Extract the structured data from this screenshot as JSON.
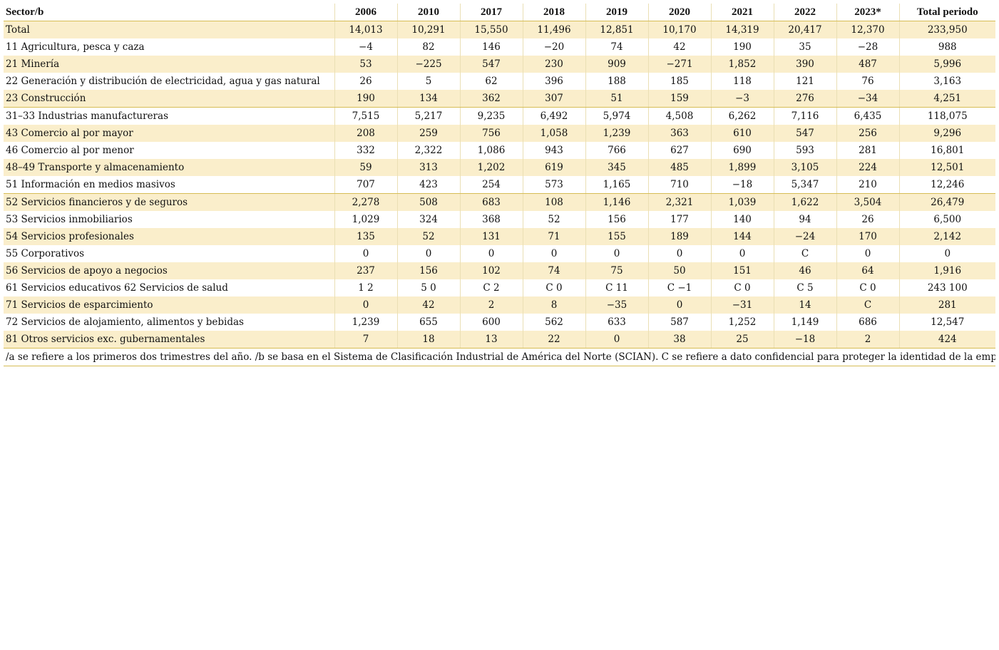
{
  "table": {
    "header": [
      "Sector/b",
      "2006",
      "2010",
      "2017",
      "2018",
      "2019",
      "2020",
      "2021",
      "2022",
      "2023*",
      "Total periodo"
    ],
    "rows": [
      [
        "Total",
        "14,013",
        "10,291",
        "15,550",
        "11,496",
        "12,851",
        "10,170",
        "14,319",
        "20,417",
        "12,370",
        "233,950"
      ],
      [
        "11 Agricultura, pesca y caza",
        "−4",
        "82",
        "146",
        "−20",
        "74",
        "42",
        "190",
        "35",
        "−28",
        "988"
      ],
      [
        "21 Minería",
        "53",
        "−225",
        "547",
        "230",
        "909",
        "−271",
        "1,852",
        "390",
        "487",
        "5,996"
      ],
      [
        "22 Generación y distribución de electricidad, agua y gas natural",
        "26",
        "5",
        "62",
        "396",
        "188",
        "185",
        "118",
        "121",
        "76",
        "3,163"
      ],
      [
        "23 Construcción",
        "190",
        "134",
        "362",
        "307",
        "51",
        "159",
        "−3",
        "276",
        "−34",
        "4,251"
      ],
      [
        "31–33 Industrias manufactureras",
        "7,515",
        "5,217",
        "9,235",
        "6,492",
        "5,974",
        "4,508",
        "6,262",
        "7,116",
        "6,435",
        "118,075"
      ],
      [
        "43 Comercio al por mayor",
        "208",
        "259",
        "756",
        "1,058",
        "1,239",
        "363",
        "610",
        "547",
        "256",
        "9,296"
      ],
      [
        "46 Comercio al por menor",
        "332",
        "2,322",
        "1,086",
        "943",
        "766",
        "627",
        "690",
        "593",
        "281",
        "16,801"
      ],
      [
        "48–49 Transporte y almacenamiento",
        "59",
        "313",
        "1,202",
        "619",
        "345",
        "485",
        "1,899",
        "3,105",
        "224",
        "12,501"
      ],
      [
        "51 Información en medios masivos",
        "707",
        "423",
        "254",
        "573",
        "1,165",
        "710",
        "−18",
        "5,347",
        "210",
        "12,246"
      ],
      [
        "52 Servicios financieros y de seguros",
        "2,278",
        "508",
        "683",
        "108",
        "1,146",
        "2,321",
        "1,039",
        "1,622",
        "3,504",
        "26,479"
      ],
      [
        "53 Servicios inmobiliarios",
        "1,029",
        "324",
        "368",
        "52",
        "156",
        "177",
        "140",
        "94",
        "26",
        "6,500"
      ],
      [
        "54 Servicios profesionales",
        "135",
        "52",
        "131",
        "71",
        "155",
        "189",
        "144",
        "−24",
        "170",
        "2,142"
      ],
      [
        "55 Corporativos",
        "0",
        "0",
        "0",
        "0",
        "0",
        "0",
        "0",
        "C",
        "0",
        "0"
      ],
      [
        "56 Servicios de apoyo a negocios",
        "237",
        "156",
        "102",
        "74",
        "75",
        "50",
        "151",
        "46",
        "64",
        "1,916"
      ],
      [
        "61 Servicios educativos 62 Servicios de salud",
        "1 2",
        "5 0",
        "C 2",
        "C 0",
        "C 11",
        "C −1",
        "C 0",
        "C 5",
        "C 0",
        "243 100"
      ],
      [
        "71 Servicios de esparcimiento",
        "0",
        "42",
        "2",
        "8",
        "−35",
        "0",
        "−31",
        "14",
        "C",
        "281"
      ],
      [
        "72 Servicios de alojamiento, alimentos y bebidas",
        "1,239",
        "655",
        "600",
        "562",
        "633",
        "587",
        "1,252",
        "1,149",
        "686",
        "12,547"
      ],
      [
        "81 Otros servicios exc. gubernamentales",
        "7",
        "18",
        "13",
        "22",
        "0",
        "38",
        "25",
        "−18",
        "2",
        "424"
      ]
    ]
  },
  "footnote": "/a se refiere a los primeros dos trimestres del año.  /b se basa en el Sistema de Clasificación Industrial de América del Norte (SCIAN). C se refiere a dato confidencial para proteger la identidad de la empresa."
}
